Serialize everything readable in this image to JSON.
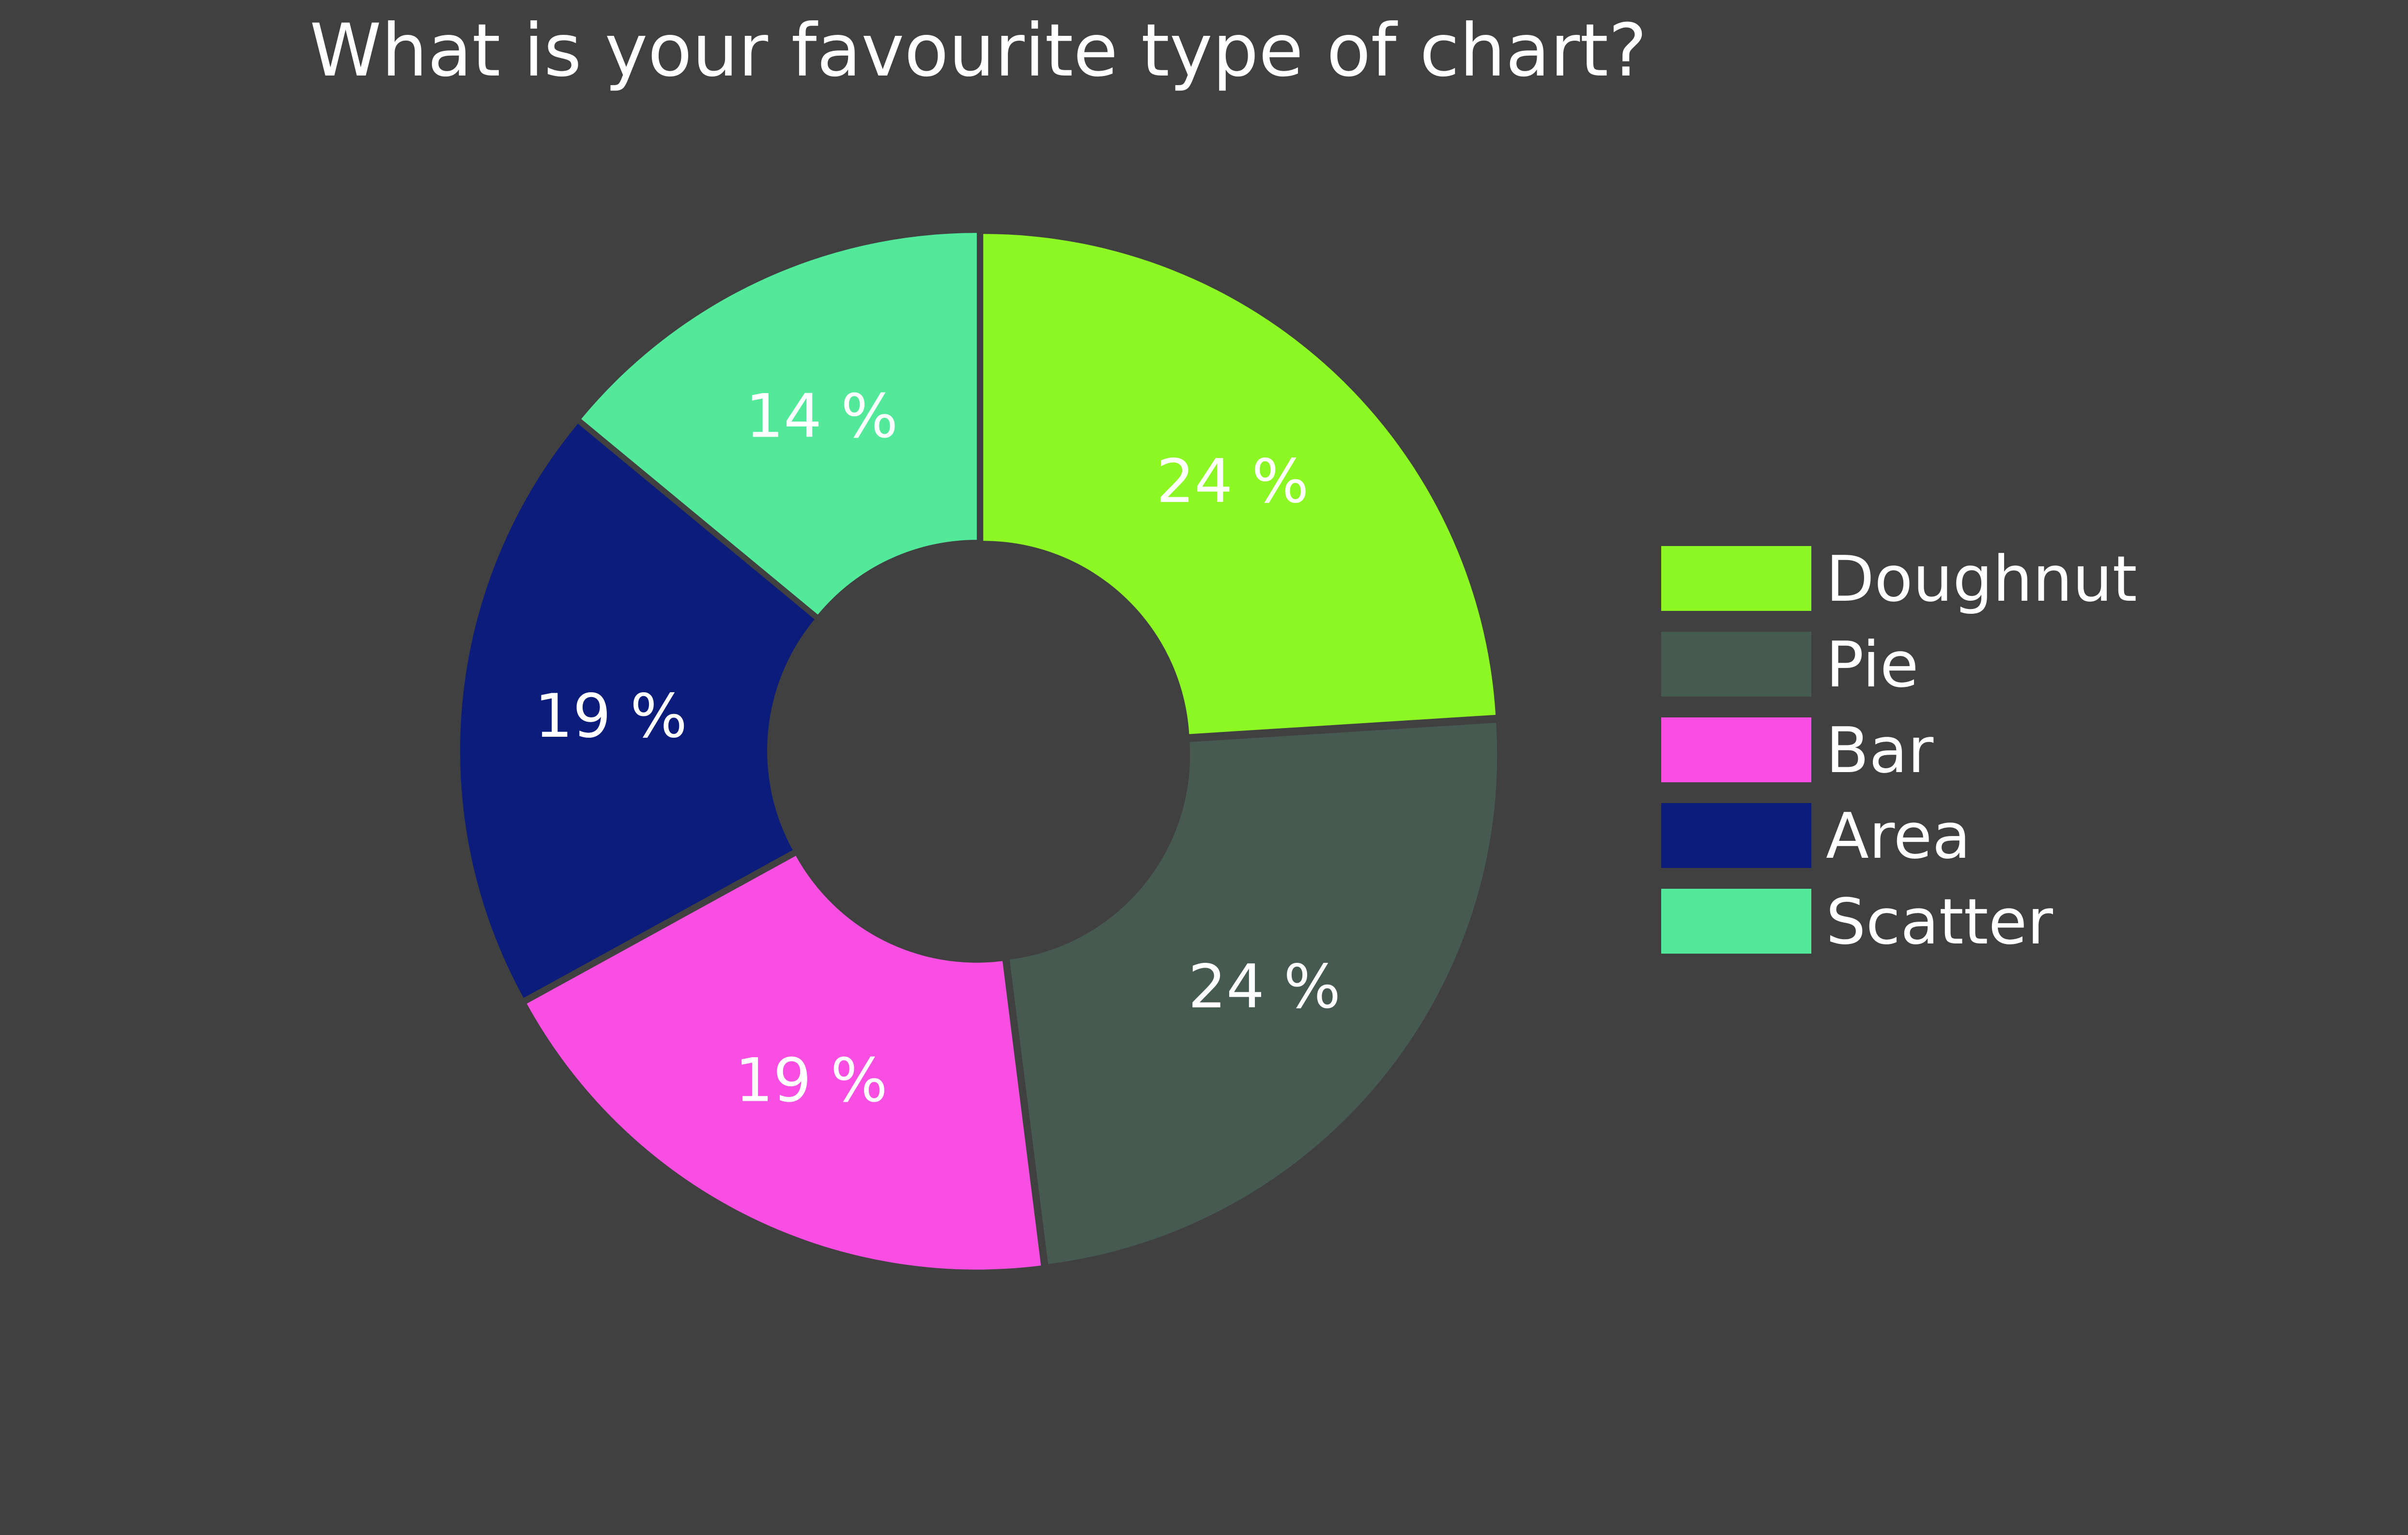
{
  "chart_data": {
    "type": "pie",
    "style": "doughnut",
    "title": "What is your favourite type of chart?",
    "categories": [
      "Doughnut",
      "Pie",
      "Bar",
      "Area",
      "Scatter"
    ],
    "values": [
      24,
      24,
      19,
      19,
      14
    ],
    "value_labels": [
      "24 %",
      "24 %",
      "19 %",
      "19 %",
      "14 %"
    ],
    "colors": [
      "#8cf723",
      "#475a51",
      "#f84fe2",
      "#0c1c7a",
      "#53e99b"
    ],
    "start_angle": "top",
    "direction": "clockwise",
    "legend": "right",
    "background": "#404040"
  }
}
